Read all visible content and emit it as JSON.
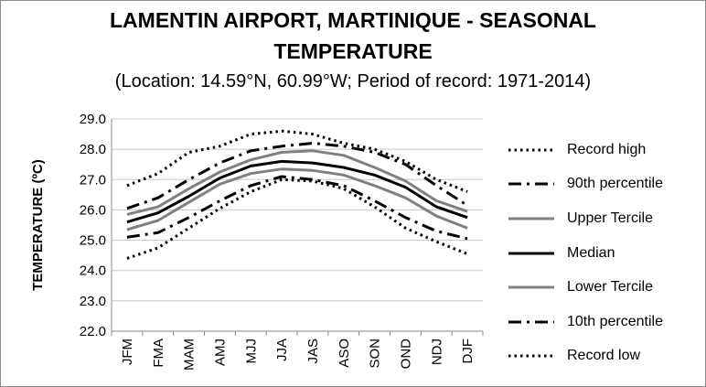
{
  "title_line1": "LAMENTIN AIRPORT, MARTINIQUE - SEASONAL",
  "title_line2": "TEMPERATURE",
  "subtitle": "(Location: 14.59°N, 60.99°W; Period of record: 1971-2014)",
  "chart_data": {
    "type": "line",
    "title": "LAMENTIN AIRPORT, MARTINIQUE - SEASONAL TEMPERATURE",
    "subtitle": "(Location: 14.59°N, 60.99°W; Period of record: 1971-2014)",
    "ylabel": "TEMPERATURE (ºC)",
    "xlabel": "",
    "ylim": [
      22.0,
      29.0
    ],
    "ytick_step": 1.0,
    "yticks": [
      "22.0",
      "23.0",
      "24.0",
      "25.0",
      "26.0",
      "27.0",
      "28.0",
      "29.0"
    ],
    "grid": "horizontal",
    "legend_position": "right",
    "categories": [
      "JFM",
      "FMA",
      "MAM",
      "AMJ",
      "MJJ",
      "JJA",
      "JAS",
      "ASO",
      "SON",
      "OND",
      "NDJ",
      "DJF"
    ],
    "series": [
      {
        "name": "Record high",
        "color": "#000000",
        "style": "dotted",
        "values": [
          26.8,
          27.2,
          27.9,
          28.1,
          28.5,
          28.6,
          28.5,
          28.2,
          28.0,
          27.6,
          27.0,
          26.6
        ]
      },
      {
        "name": "90th percentile",
        "color": "#000000",
        "style": "dashdot",
        "values": [
          26.05,
          26.4,
          27.0,
          27.55,
          27.95,
          28.1,
          28.2,
          28.1,
          27.9,
          27.5,
          26.8,
          26.15
        ]
      },
      {
        "name": "Upper Tercile",
        "color": "#808080",
        "style": "solid",
        "values": [
          25.85,
          26.1,
          26.7,
          27.25,
          27.65,
          27.9,
          27.95,
          27.8,
          27.4,
          26.95,
          26.3,
          25.95
        ]
      },
      {
        "name": "Median",
        "color": "#000000",
        "style": "solid",
        "values": [
          25.6,
          25.9,
          26.45,
          27.05,
          27.45,
          27.6,
          27.55,
          27.4,
          27.15,
          26.75,
          26.1,
          25.75
        ]
      },
      {
        "name": "Lower Tercile",
        "color": "#808080",
        "style": "solid",
        "values": [
          25.35,
          25.65,
          26.25,
          26.85,
          27.2,
          27.35,
          27.3,
          27.15,
          26.8,
          26.4,
          25.8,
          25.4
        ]
      },
      {
        "name": "10th percentile",
        "color": "#000000",
        "style": "dashdot",
        "values": [
          25.1,
          25.25,
          25.75,
          26.3,
          26.8,
          27.1,
          27.0,
          26.8,
          26.3,
          25.75,
          25.3,
          25.05
        ]
      },
      {
        "name": "Record low",
        "color": "#000000",
        "style": "dotted",
        "values": [
          24.4,
          24.75,
          25.4,
          26.05,
          26.6,
          27.0,
          26.95,
          26.7,
          26.1,
          25.4,
          24.95,
          24.55
        ]
      }
    ]
  }
}
